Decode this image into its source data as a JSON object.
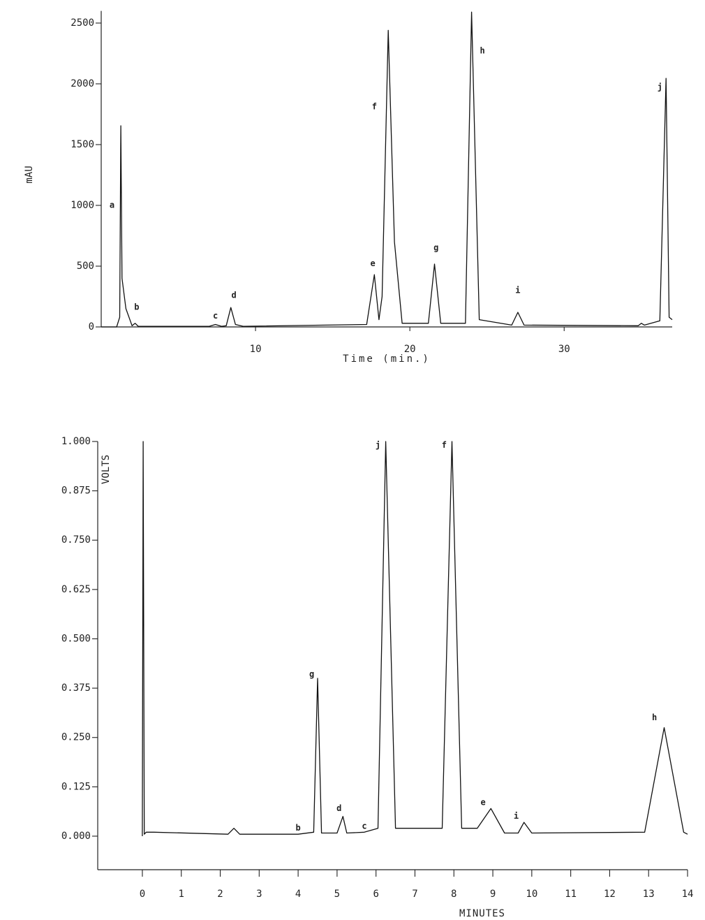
{
  "chart_data": [
    {
      "type": "line",
      "x_label": "Time (min.)",
      "y_label": "mAU",
      "xlim": [
        0,
        37
      ],
      "ylim": [
        0,
        2600
      ],
      "xticks": [
        10,
        20,
        30
      ],
      "yticks": [
        0,
        500,
        1000,
        1500,
        2000,
        2500
      ],
      "x": [
        0,
        1.0,
        1.2,
        1.27,
        1.35,
        1.6,
        2.0,
        2.2,
        2.4,
        7.0,
        7.4,
        7.8,
        8.1,
        8.4,
        8.7,
        9.2,
        17.2,
        17.7,
        18.0,
        18.2,
        18.6,
        19.0,
        19.5,
        21.2,
        21.6,
        22.0,
        23.6,
        24.0,
        24.5,
        26.6,
        27.0,
        27.4,
        34.8,
        35.0,
        35.2,
        36.2,
        36.6,
        36.8,
        37.0
      ],
      "series": [
        {
          "color": "#111111",
          "values": [
            0,
            0,
            80,
            1655,
            400,
            150,
            10,
            30,
            5,
            5,
            20,
            5,
            10,
            160,
            20,
            5,
            20,
            430,
            60,
            250,
            2440,
            700,
            30,
            30,
            517,
            30,
            30,
            2590,
            60,
            15,
            120,
            15,
            10,
            30,
            15,
            50,
            2045,
            80,
            60
          ]
        }
      ],
      "annotations": [
        {
          "text": "a",
          "x": 0.7,
          "y": 1000
        },
        {
          "text": "b",
          "x": 2.3,
          "y": 160
        },
        {
          "text": "c",
          "x": 7.4,
          "y": 90
        },
        {
          "text": "d",
          "x": 8.6,
          "y": 260
        },
        {
          "text": "e",
          "x": 17.6,
          "y": 520
        },
        {
          "text": "f",
          "x": 17.7,
          "y": 1810
        },
        {
          "text": "g",
          "x": 21.7,
          "y": 650
        },
        {
          "text": "h",
          "x": 24.7,
          "y": 2270
        },
        {
          "text": "i",
          "x": 27.0,
          "y": 300
        },
        {
          "text": "j",
          "x": 36.2,
          "y": 1970
        }
      ]
    },
    {
      "type": "line",
      "x_label": "MINUTES",
      "y_label": "VOLTS",
      "xlim": [
        -1.2,
        14.0
      ],
      "ylim": [
        -0.085,
        1.0
      ],
      "xticks": [
        0,
        1,
        2,
        3,
        4,
        5,
        6,
        7,
        8,
        9,
        10,
        11,
        12,
        13,
        14
      ],
      "yticks": [
        {
          "value": 0,
          "label": "0.000"
        },
        0.125,
        {
          "value": 0.25,
          "label": "0.250"
        },
        0.375,
        {
          "value": 0.5,
          "label": "0.500"
        },
        0.625,
        {
          "value": 0.75,
          "label": "0.750"
        },
        0.875,
        {
          "value": 1,
          "label": "1.000"
        }
      ],
      "x": [
        0,
        0.02,
        0.05,
        0.1,
        0.3,
        2.2,
        2.35,
        2.5,
        4.0,
        4.4,
        4.5,
        4.6,
        5.0,
        5.15,
        5.25,
        5.7,
        6.05,
        6.25,
        6.5,
        7.7,
        7.95,
        8.2,
        8.6,
        8.95,
        9.3,
        9.65,
        9.8,
        10.0,
        12.9,
        13.4,
        13.9,
        14.0
      ],
      "series": [
        {
          "color": "#111111",
          "values": [
            0,
            1.0,
            0.005,
            0.01,
            0.01,
            0.005,
            0.02,
            0.005,
            0.005,
            0.01,
            0.4,
            0.008,
            0.008,
            0.05,
            0.008,
            0.01,
            0.02,
            1.0,
            0.02,
            0.02,
            1.0,
            0.02,
            0.02,
            0.07,
            0.008,
            0.008,
            0.035,
            0.008,
            0.01,
            0.275,
            0.01,
            0.005
          ]
        }
      ],
      "annotations": [
        {
          "text": "b",
          "x": 4.0,
          "y": 0.02
        },
        {
          "text": "g",
          "x": 4.35,
          "y": 0.41
        },
        {
          "text": "d",
          "x": 5.05,
          "y": 0.07
        },
        {
          "text": "c",
          "x": 5.7,
          "y": 0.025
        },
        {
          "text": "j",
          "x": 6.05,
          "y": 0.99
        },
        {
          "text": "f",
          "x": 7.75,
          "y": 0.99
        },
        {
          "text": "e",
          "x": 8.75,
          "y": 0.085
        },
        {
          "text": "i",
          "x": 9.6,
          "y": 0.05
        },
        {
          "text": "h",
          "x": 13.15,
          "y": 0.3
        }
      ]
    }
  ]
}
